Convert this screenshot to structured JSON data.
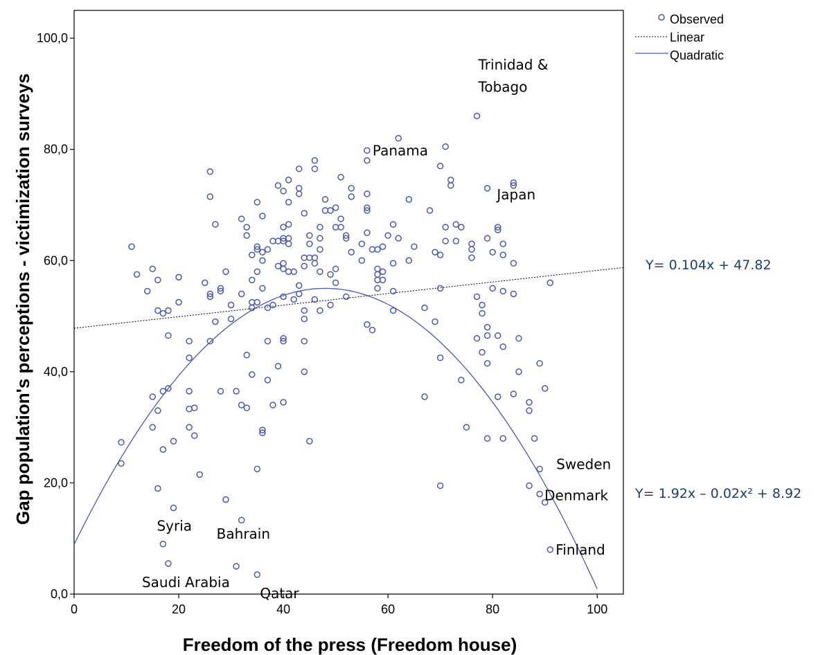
{
  "chart_data": {
    "type": "scatter",
    "xlabel": "Freedom of the press (Freedom house)",
    "ylabel": "Gap population's perceptions  - victimization surveys",
    "xlim": [
      0,
      105
    ],
    "ylim": [
      0,
      105
    ],
    "x_ticks": [
      0,
      20,
      40,
      60,
      80,
      100
    ],
    "x_tick_labels": [
      "0",
      "20",
      "40",
      "60",
      "80",
      "100"
    ],
    "y_ticks": [
      0,
      20,
      40,
      60,
      80,
      100
    ],
    "y_tick_labels": [
      "0,0",
      "20,0",
      "40,0",
      "60,0",
      "80,0",
      "100,0"
    ],
    "grid": false,
    "legend_position": "top-right outside plot",
    "legend": [
      {
        "label": "Observed",
        "marker": "circle",
        "color": "#4a5aa8"
      },
      {
        "label": "Linear",
        "style": "dotted",
        "color": "#000000"
      },
      {
        "label": "Quadratic",
        "style": "solid",
        "color": "#4a5aa8"
      }
    ],
    "fits": {
      "linear": {
        "slope": 0.104,
        "intercept": 47.82,
        "equation": "Y= 0.104x + 47.82"
      },
      "quadratic": {
        "a": 1.92,
        "b": -0.02,
        "c": 8.92,
        "equation": "Y= 1.92x – 0.02x² + 8.92"
      }
    },
    "annotations": [
      {
        "line1": "Trinidad &",
        "line2": "Tobago",
        "x": 77,
        "y": 86
      },
      {
        "line1": "Panama",
        "x": 56,
        "y": 79.8
      },
      {
        "line1": "Japan",
        "x": 84,
        "y": 73.5
      },
      {
        "line1": "Sweden",
        "x": 89,
        "y": 22.5
      },
      {
        "line1": "Denmark",
        "x": 89,
        "y": 18
      },
      {
        "line1": "Finland",
        "x": 91,
        "y": 8
      },
      {
        "line1": "Syria",
        "x": 19,
        "y": 15.5
      },
      {
        "line1": "Bahrain",
        "x": 32,
        "y": 13.3
      },
      {
        "line1": "Saudi Arabia",
        "x": 18,
        "y": 5.5
      },
      {
        "line1": "Qatar",
        "x": 35,
        "y": 3.5
      }
    ],
    "series": [
      {
        "name": "Observed",
        "points": [
          [
            9,
            27.3
          ],
          [
            9,
            23.5
          ],
          [
            11,
            62.5
          ],
          [
            12,
            57.5
          ],
          [
            14,
            54.5
          ],
          [
            15,
            58.5
          ],
          [
            15,
            35.5
          ],
          [
            15,
            30
          ],
          [
            16,
            56.5
          ],
          [
            16,
            51
          ],
          [
            16,
            33
          ],
          [
            16,
            19
          ],
          [
            17,
            50.5
          ],
          [
            17,
            36.5
          ],
          [
            17,
            26
          ],
          [
            17,
            9
          ],
          [
            18,
            51
          ],
          [
            18,
            46.5
          ],
          [
            18,
            37
          ],
          [
            18,
            5.5
          ],
          [
            19,
            27.5
          ],
          [
            19,
            15.5
          ],
          [
            20,
            57
          ],
          [
            20,
            52.5
          ],
          [
            22,
            45.5
          ],
          [
            22,
            42.5
          ],
          [
            22,
            36.5
          ],
          [
            22,
            33.3
          ],
          [
            22,
            30
          ],
          [
            23,
            33.5
          ],
          [
            23,
            28.5
          ],
          [
            24,
            21.5
          ],
          [
            25,
            56
          ],
          [
            26,
            76
          ],
          [
            26,
            71.5
          ],
          [
            26,
            54
          ],
          [
            26,
            53.5
          ],
          [
            26,
            45.5
          ],
          [
            27,
            66.5
          ],
          [
            27,
            49
          ],
          [
            28,
            55
          ],
          [
            28,
            54.5
          ],
          [
            28,
            36.5
          ],
          [
            29,
            58
          ],
          [
            29,
            17
          ],
          [
            30,
            52
          ],
          [
            30,
            49.5
          ],
          [
            31,
            36.5
          ],
          [
            31,
            5
          ],
          [
            32,
            67.5
          ],
          [
            32,
            54
          ],
          [
            32,
            34
          ],
          [
            32,
            13.3
          ],
          [
            33,
            66
          ],
          [
            33,
            64.5
          ],
          [
            33,
            43
          ],
          [
            33,
            33.5
          ],
          [
            34,
            61
          ],
          [
            34,
            56.5
          ],
          [
            34,
            52.5
          ],
          [
            34,
            51.5
          ],
          [
            34,
            39.5
          ],
          [
            35,
            70.5
          ],
          [
            35,
            62.5
          ],
          [
            35,
            62
          ],
          [
            35,
            58
          ],
          [
            35,
            52.5
          ],
          [
            35,
            22.5
          ],
          [
            35,
            3.5
          ],
          [
            36,
            68
          ],
          [
            36,
            61.5
          ],
          [
            36,
            60
          ],
          [
            36,
            55
          ],
          [
            36,
            29.5
          ],
          [
            36,
            29
          ],
          [
            37,
            62
          ],
          [
            37,
            51.5
          ],
          [
            37,
            45.5
          ],
          [
            37,
            38.5
          ],
          [
            38,
            63.5
          ],
          [
            38,
            52
          ],
          [
            38,
            34
          ],
          [
            39,
            73.5
          ],
          [
            39,
            63.5
          ],
          [
            39,
            59
          ],
          [
            39,
            41
          ],
          [
            40,
            72.5
          ],
          [
            40,
            66
          ],
          [
            40,
            64
          ],
          [
            40,
            63.5
          ],
          [
            40,
            59.5
          ],
          [
            40,
            58.5
          ],
          [
            40,
            53.5
          ],
          [
            40,
            46
          ],
          [
            40,
            45.5
          ],
          [
            40,
            34.5
          ],
          [
            41,
            74.5
          ],
          [
            41,
            70.5
          ],
          [
            41,
            66.5
          ],
          [
            41,
            64
          ],
          [
            41,
            63
          ],
          [
            41,
            58
          ],
          [
            42,
            58
          ],
          [
            42,
            53
          ],
          [
            43,
            76.5
          ],
          [
            43,
            73
          ],
          [
            43,
            72
          ],
          [
            43,
            55.5
          ],
          [
            43,
            54
          ],
          [
            44,
            68.5
          ],
          [
            44,
            60.5
          ],
          [
            44,
            59
          ],
          [
            44,
            51
          ],
          [
            44,
            49.5
          ],
          [
            44,
            45.5
          ],
          [
            44,
            40
          ],
          [
            45,
            63
          ],
          [
            45,
            64.5
          ],
          [
            45,
            60.5
          ],
          [
            45,
            27.5
          ],
          [
            46,
            78
          ],
          [
            46,
            76.5
          ],
          [
            46,
            60.5
          ],
          [
            46,
            59.5
          ],
          [
            46,
            53
          ],
          [
            47,
            66
          ],
          [
            47,
            64
          ],
          [
            47,
            62
          ],
          [
            47,
            58
          ],
          [
            47,
            51
          ],
          [
            48,
            71
          ],
          [
            48,
            69
          ],
          [
            49,
            69
          ],
          [
            49,
            57.5
          ],
          [
            49,
            52
          ],
          [
            50,
            69.5
          ],
          [
            50,
            66
          ],
          [
            50,
            58.5
          ],
          [
            50,
            56
          ],
          [
            51,
            75
          ],
          [
            51,
            67.5
          ],
          [
            51,
            66
          ],
          [
            52,
            64.5
          ],
          [
            52,
            64
          ],
          [
            52,
            53.5
          ],
          [
            53,
            73
          ],
          [
            53,
            71.5
          ],
          [
            53,
            61.5
          ],
          [
            55,
            63
          ],
          [
            55,
            60
          ],
          [
            56,
            79.8
          ],
          [
            56,
            78
          ],
          [
            56,
            72
          ],
          [
            56,
            69.5
          ],
          [
            56,
            69
          ],
          [
            56,
            65
          ],
          [
            56,
            48.5
          ],
          [
            57,
            62
          ],
          [
            57,
            47.5
          ],
          [
            58,
            62
          ],
          [
            58,
            58.5
          ],
          [
            58,
            57.5
          ],
          [
            58,
            56.5
          ],
          [
            58,
            55
          ],
          [
            59,
            62.5
          ],
          [
            59,
            58
          ],
          [
            59,
            56.5
          ],
          [
            60,
            64.5
          ],
          [
            61,
            66.5
          ],
          [
            61,
            59.5
          ],
          [
            61,
            54.5
          ],
          [
            61,
            51
          ],
          [
            62,
            82
          ],
          [
            62,
            64
          ],
          [
            64,
            71
          ],
          [
            64,
            60
          ],
          [
            65,
            62.5
          ],
          [
            67,
            51.5
          ],
          [
            67,
            35.5
          ],
          [
            68,
            69
          ],
          [
            69,
            61.5
          ],
          [
            69,
            49
          ],
          [
            70,
            77
          ],
          [
            70,
            61
          ],
          [
            70,
            55
          ],
          [
            70,
            42.5
          ],
          [
            70,
            19.5
          ],
          [
            71,
            80.5
          ],
          [
            71,
            66
          ],
          [
            71,
            63.5
          ],
          [
            72,
            74.5
          ],
          [
            72,
            73.5
          ],
          [
            73,
            66.5
          ],
          [
            73,
            63.5
          ],
          [
            74,
            66
          ],
          [
            74,
            38.5
          ],
          [
            75,
            30
          ],
          [
            76,
            63
          ],
          [
            76,
            62
          ],
          [
            76,
            60.5
          ],
          [
            77,
            86
          ],
          [
            77,
            53.5
          ],
          [
            77,
            46
          ],
          [
            78,
            52
          ],
          [
            78,
            50.5
          ],
          [
            78,
            43.5
          ],
          [
            79,
            73
          ],
          [
            79,
            64
          ],
          [
            79,
            48
          ],
          [
            79,
            46.5
          ],
          [
            79,
            41.5
          ],
          [
            79,
            28
          ],
          [
            80,
            61.5
          ],
          [
            80,
            55
          ],
          [
            81,
            66
          ],
          [
            81,
            65.5
          ],
          [
            81,
            46.5
          ],
          [
            81,
            35.5
          ],
          [
            82,
            63
          ],
          [
            82,
            61
          ],
          [
            82,
            54.5
          ],
          [
            82,
            44.5
          ],
          [
            82,
            28
          ],
          [
            84,
            74
          ],
          [
            84,
            73.5
          ],
          [
            84,
            59.5
          ],
          [
            84,
            54
          ],
          [
            84,
            36
          ],
          [
            85,
            46
          ],
          [
            85,
            40
          ],
          [
            87,
            34.5
          ],
          [
            87,
            33
          ],
          [
            87,
            19.5
          ],
          [
            88,
            28
          ],
          [
            89,
            41.5
          ],
          [
            89,
            22.5
          ],
          [
            89,
            18
          ],
          [
            90,
            37
          ],
          [
            90,
            16.5
          ],
          [
            91,
            56
          ],
          [
            91,
            8
          ]
        ]
      }
    ]
  }
}
